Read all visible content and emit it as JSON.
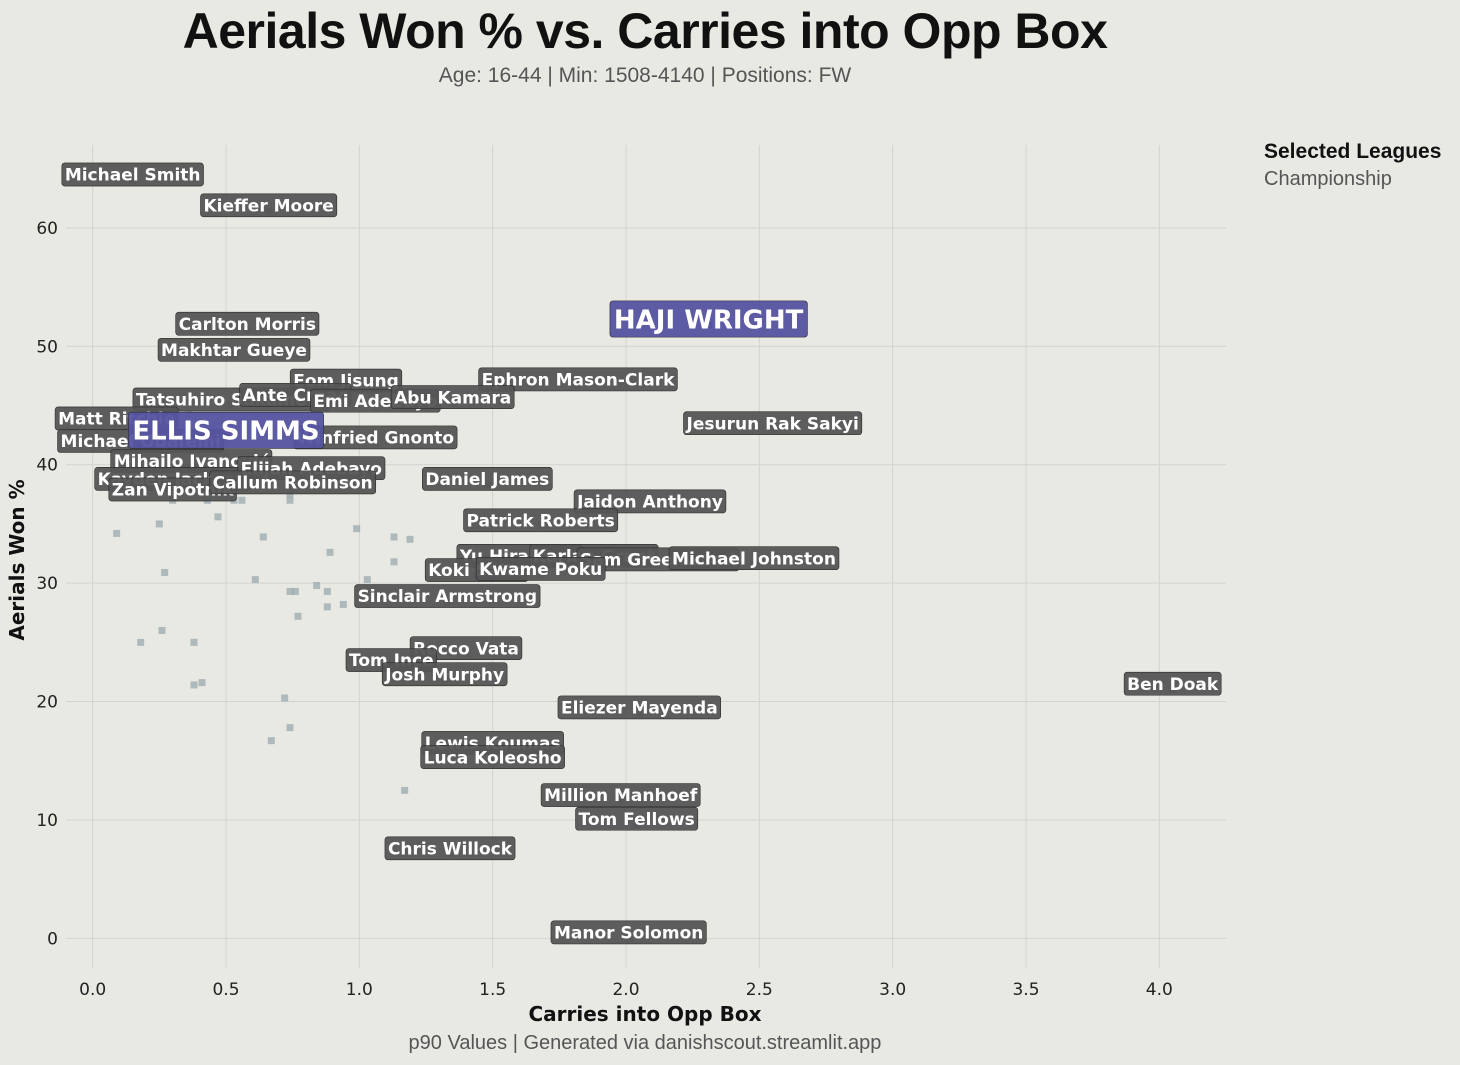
{
  "chart_data": {
    "type": "scatter",
    "title": "Aerials Won % vs. Carries into Opp Box",
    "subtitle": "Age: 16-44 | Min: 1508-4140 | Positions: FW",
    "xlabel": "Carries into Opp Box",
    "ylabel": "Aerials Won %",
    "caption": "p90 Values | Generated via danishscout.streamlit.app",
    "xlim": [
      -0.1,
      4.25
    ],
    "ylim": [
      -2.5,
      67
    ],
    "xticks": [
      0.0,
      0.5,
      1.0,
      1.5,
      2.0,
      2.5,
      3.0,
      3.5,
      4.0
    ],
    "xtick_labels": [
      "0.0",
      "0.5",
      "1.0",
      "1.5",
      "2.0",
      "2.5",
      "3.0",
      "3.5",
      "4.0"
    ],
    "yticks": [
      0,
      10,
      20,
      30,
      40,
      50,
      60
    ],
    "ytick_labels": [
      "0",
      "10",
      "20",
      "30",
      "40",
      "50",
      "60"
    ],
    "grid": true,
    "legend": {
      "title": "Selected Leagues",
      "items": [
        "Championship"
      ],
      "placement": "top-right outside"
    },
    "colors": {
      "background": "#e9e9e4",
      "point": "#9aa8ad",
      "label_box": "#555555",
      "highlight_box": "#5553a0"
    },
    "labeled_points": [
      {
        "name": "Michael Smith",
        "x": 0.15,
        "y": 64.0
      },
      {
        "name": "Kieffer Moore",
        "x": 0.66,
        "y": 61.4
      },
      {
        "name": "Carlton Morris",
        "x": 0.58,
        "y": 51.4
      },
      {
        "name": "Makhtar Gueye",
        "x": 0.53,
        "y": 49.2
      },
      {
        "name": "Eom Jisung",
        "x": 0.95,
        "y": 46.6
      },
      {
        "name": "Ephron Mason-Clark",
        "x": 1.82,
        "y": 46.7
      },
      {
        "name": "Tatsuhiro Sakamoto",
        "x": 0.52,
        "y": 45.0
      },
      {
        "name": "Ante Crnac",
        "x": 0.76,
        "y": 45.4
      },
      {
        "name": "Emi Adebayo",
        "x": 1.06,
        "y": 44.9
      },
      {
        "name": "Abu Kamara",
        "x": 1.35,
        "y": 45.2
      },
      {
        "name": "Matt Ritchie",
        "x": 0.09,
        "y": 43.4
      },
      {
        "name": "Jesurun Rak Sakyi",
        "x": 2.55,
        "y": 43.0
      },
      {
        "name": "Michael Obafemi",
        "x": 0.18,
        "y": 41.5
      },
      {
        "name": "Winfried Gnonto",
        "x": 1.06,
        "y": 41.8
      },
      {
        "name": "Mihailo Ivanović",
        "x": 0.37,
        "y": 39.8
      },
      {
        "name": "Kayden Jackson",
        "x": 0.3,
        "y": 38.3
      },
      {
        "name": "Elijah Adebayo",
        "x": 0.82,
        "y": 39.2
      },
      {
        "name": "Zan Vipotnik",
        "x": 0.3,
        "y": 37.4
      },
      {
        "name": "Callum Robinson",
        "x": 0.75,
        "y": 38.0
      },
      {
        "name": "Daniel James",
        "x": 1.48,
        "y": 38.3
      },
      {
        "name": "Jaidon Anthony",
        "x": 2.09,
        "y": 36.4
      },
      {
        "name": "Patrick Roberts",
        "x": 1.68,
        "y": 34.8
      },
      {
        "name": "Yu Hirakawa",
        "x": 1.6,
        "y": 31.8
      },
      {
        "name": "Karlan Grant",
        "x": 1.88,
        "y": 31.8
      },
      {
        "name": "Sam Greenwood",
        "x": 2.12,
        "y": 31.5
      },
      {
        "name": "Michael Johnston",
        "x": 2.48,
        "y": 31.6
      },
      {
        "name": "Koki Saito",
        "x": 1.44,
        "y": 30.6
      },
      {
        "name": "Kwame Poku",
        "x": 1.68,
        "y": 30.7
      },
      {
        "name": "Sinclair Armstrong",
        "x": 1.33,
        "y": 28.4
      },
      {
        "name": "Rocco Vata",
        "x": 1.4,
        "y": 24.0
      },
      {
        "name": "Tom Ince",
        "x": 1.12,
        "y": 23.0
      },
      {
        "name": "Josh Murphy",
        "x": 1.32,
        "y": 21.8
      },
      {
        "name": "Ben Doak",
        "x": 4.05,
        "y": 21.0
      },
      {
        "name": "Eliezer Mayenda",
        "x": 2.05,
        "y": 19.0
      },
      {
        "name": "Lewis Koumas",
        "x": 1.5,
        "y": 16.0
      },
      {
        "name": "Luca Koleosho",
        "x": 1.5,
        "y": 14.8
      },
      {
        "name": "Million Manhoef",
        "x": 1.98,
        "y": 11.6
      },
      {
        "name": "Tom Fellows",
        "x": 2.04,
        "y": 9.6
      },
      {
        "name": "Chris Willock",
        "x": 1.34,
        "y": 7.1
      },
      {
        "name": "Manor Solomon",
        "x": 2.01,
        "y": 0.0
      }
    ],
    "highlighted_points": [
      {
        "name": "HAJI WRIGHT",
        "x": 2.31,
        "y": 51.8
      },
      {
        "name": "ELLIS SIMMS",
        "x": 0.5,
        "y": 42.4
      }
    ],
    "unlabeled_points": [
      {
        "x": 0.09,
        "y": 34.2
      },
      {
        "x": 0.25,
        "y": 35.0
      },
      {
        "x": 0.27,
        "y": 30.9
      },
      {
        "x": 0.18,
        "y": 25.0
      },
      {
        "x": 0.26,
        "y": 26.0
      },
      {
        "x": 0.38,
        "y": 25.0
      },
      {
        "x": 0.38,
        "y": 21.4
      },
      {
        "x": 0.41,
        "y": 21.6
      },
      {
        "x": 0.3,
        "y": 37.0
      },
      {
        "x": 0.43,
        "y": 37.0
      },
      {
        "x": 0.47,
        "y": 35.6
      },
      {
        "x": 0.53,
        "y": 37.0
      },
      {
        "x": 0.56,
        "y": 37.0
      },
      {
        "x": 0.64,
        "y": 33.9
      },
      {
        "x": 0.61,
        "y": 30.3
      },
      {
        "x": 0.74,
        "y": 29.3
      },
      {
        "x": 0.76,
        "y": 29.3
      },
      {
        "x": 0.77,
        "y": 27.2
      },
      {
        "x": 0.74,
        "y": 37.0
      },
      {
        "x": 0.74,
        "y": 37.5
      },
      {
        "x": 0.84,
        "y": 29.8
      },
      {
        "x": 0.88,
        "y": 29.3
      },
      {
        "x": 0.88,
        "y": 28.0
      },
      {
        "x": 0.94,
        "y": 28.2
      },
      {
        "x": 0.89,
        "y": 32.6
      },
      {
        "x": 0.99,
        "y": 34.6
      },
      {
        "x": 1.13,
        "y": 33.9
      },
      {
        "x": 1.19,
        "y": 33.7
      },
      {
        "x": 1.13,
        "y": 31.8
      },
      {
        "x": 1.03,
        "y": 30.3
      },
      {
        "x": 0.72,
        "y": 20.3
      },
      {
        "x": 0.74,
        "y": 17.8
      },
      {
        "x": 0.67,
        "y": 16.7
      },
      {
        "x": 1.17,
        "y": 12.5
      },
      {
        "x": 0.36,
        "y": 44.2
      },
      {
        "x": 0.5,
        "y": 42.0
      }
    ]
  }
}
